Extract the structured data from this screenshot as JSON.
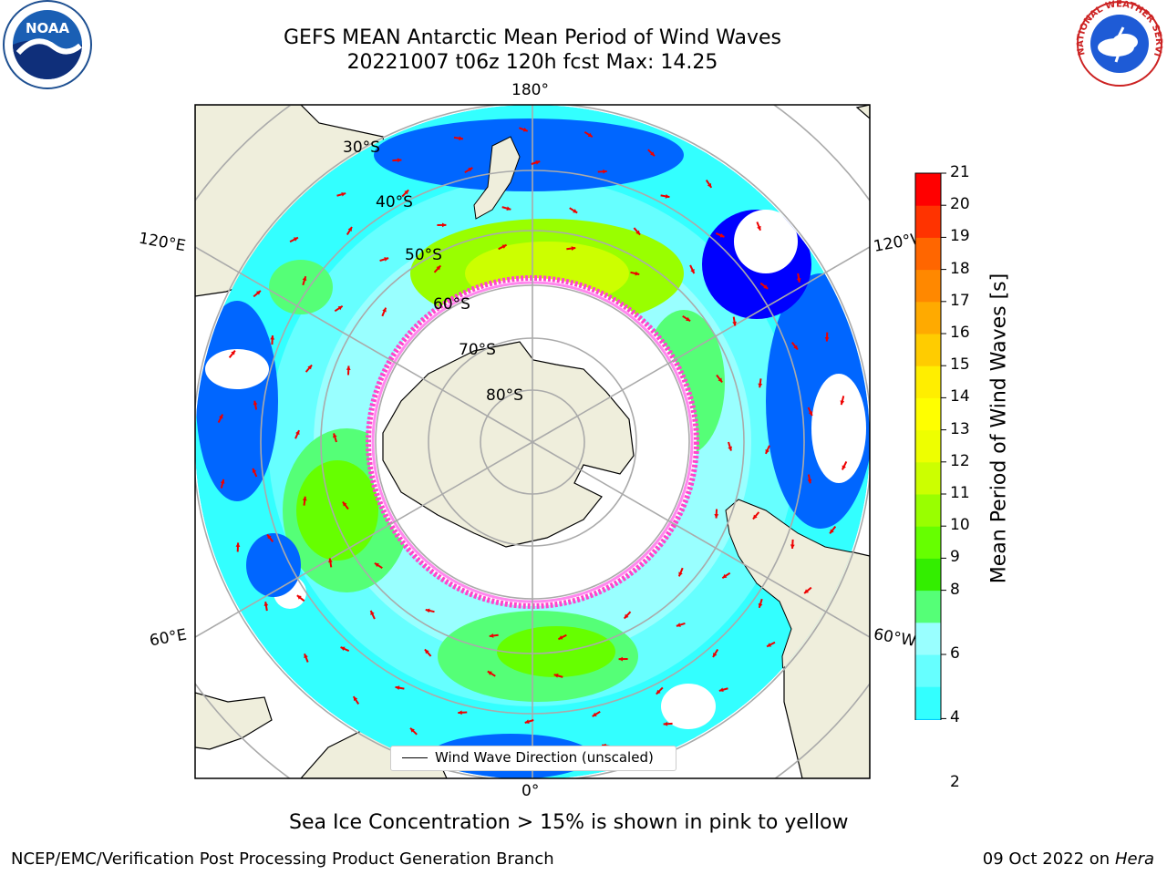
{
  "header": {
    "title_line1": "GEFS MEAN Antarctic Mean Period of Wind Waves",
    "title_line2": "20221007 t06z 120h fcst   Max: 14.25"
  },
  "logos": {
    "noaa_text": "NOAA",
    "nws_text": "NATIONAL WEATHER SERVICE"
  },
  "map": {
    "longitude_labels": [
      "180°",
      "120°E",
      "120°W",
      "60°E",
      "60°W",
      "0°"
    ],
    "latitude_labels": [
      "30°S",
      "40°S",
      "50°S",
      "60°S",
      "70°S",
      "80°S"
    ],
    "legend_label": "Wind Wave Direction (unscaled)"
  },
  "colorbar": {
    "label": "Mean Period of Wind Waves [s]",
    "ticks": [
      "21",
      "20",
      "19",
      "18",
      "17",
      "16",
      "15",
      "14",
      "13",
      "12",
      "11",
      "10",
      "9",
      "8",
      "6",
      "4",
      "2"
    ],
    "levels": [
      2,
      3,
      4,
      5,
      6,
      7,
      8,
      9,
      10,
      11,
      12,
      13,
      14,
      15,
      16,
      17,
      18,
      19,
      20,
      21
    ],
    "colors": [
      "#0066ff",
      "#00ccff",
      "#33ffff",
      "#66ffff",
      "#99ffff",
      "#55ff77",
      "#33ee00",
      "#66ff00",
      "#99ff00",
      "#ccff00",
      "#eeff00",
      "#ffff00",
      "#ffee00",
      "#ffcc00",
      "#ffaa00",
      "#ff8800",
      "#ff6600",
      "#ff3300",
      "#ff0000"
    ],
    "under_color": "#0000ff"
  },
  "caption": "Sea Ice Concentration > 15% is shown in pink to yellow",
  "footer": {
    "left": "NCEP/EMC/Verification Post Processing Product Generation Branch",
    "right_date": "09 Oct 2022 on ",
    "right_host": "Hera"
  }
}
